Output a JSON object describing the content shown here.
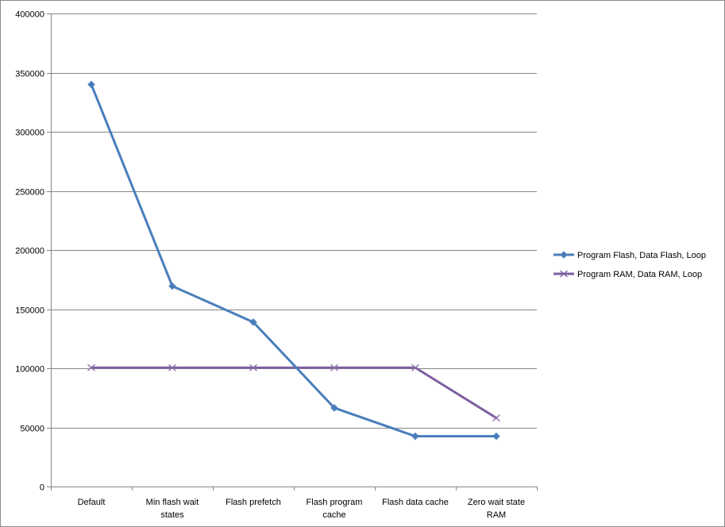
{
  "chart_data": {
    "type": "line",
    "title": "",
    "xlabel": "",
    "ylabel": "",
    "categories": [
      [
        "Default"
      ],
      [
        "Min flash wait",
        "states"
      ],
      [
        "Flash prefetch"
      ],
      [
        "Flash program",
        "cache"
      ],
      [
        "Flash data cache"
      ],
      [
        "Zero wait state",
        "RAM"
      ]
    ],
    "ylim": [
      0,
      400000
    ],
    "yticks": [
      0,
      50000,
      100000,
      150000,
      200000,
      250000,
      300000,
      350000,
      400000
    ],
    "ytick_labels": [
      "0",
      "50000",
      "100000",
      "150000",
      "200000",
      "250000",
      "300000",
      "350000",
      "400000"
    ],
    "grid": true,
    "legend_position": "right",
    "series": [
      {
        "name": "Program Flash, Data Flash, Loop",
        "color": "#4a7ebb",
        "marker": "diamond",
        "values": [
          340000,
          169500,
          139000,
          66500,
          42500,
          42500
        ]
      },
      {
        "name": "Program RAM, Data RAM, Loop",
        "color": "#7d60a0",
        "marker": "x",
        "values": [
          100500,
          100500,
          100500,
          100500,
          100500,
          58000
        ]
      }
    ]
  }
}
